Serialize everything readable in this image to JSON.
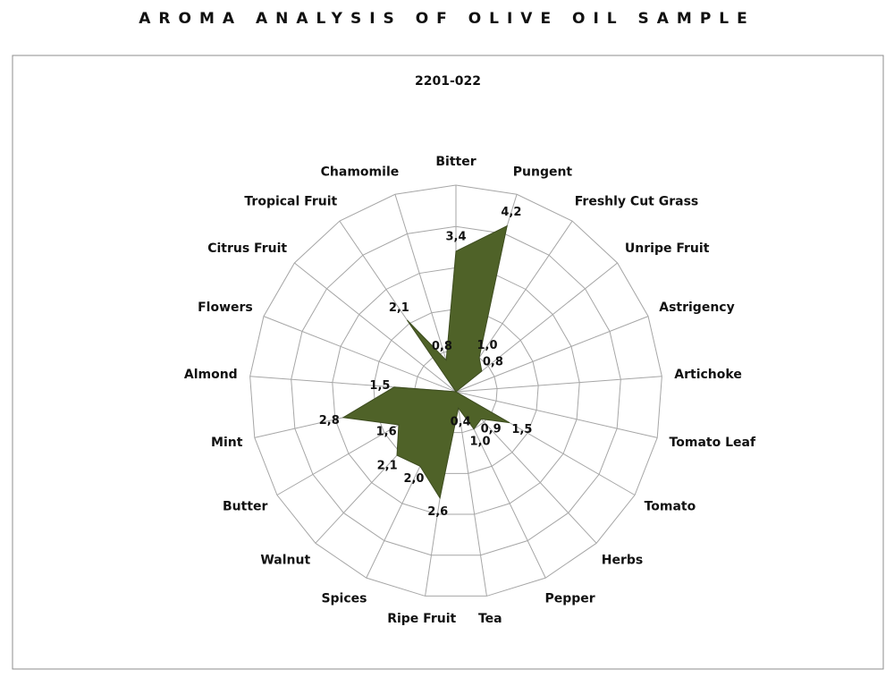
{
  "chart_data": {
    "type": "radar",
    "title": "AROMA ANALYSIS OF OLIVE OIL SAMPLE",
    "subtitle": "2201-022",
    "categories": [
      "Bitter",
      "Pungent",
      "Freshly Cut Grass",
      "Unripe Fruit",
      "Astrigency",
      "Artichoke",
      "Tomato Leaf",
      "Tomato",
      "Herbs",
      "Pepper",
      "Tea",
      "Ripe Fruit",
      "Spices",
      "Walnut",
      "Butter",
      "Mint",
      "Almond",
      "Flowers",
      "Citrus Fruit",
      "Tropical Fruit",
      "Chamomile"
    ],
    "values": [
      3.4,
      4.2,
      1.0,
      0.8,
      0,
      0,
      0,
      1.5,
      0.9,
      1.0,
      0.4,
      2.6,
      2.0,
      2.1,
      1.6,
      2.8,
      1.5,
      0,
      0,
      2.1,
      0.8
    ],
    "value_labels": [
      "3,4",
      "4,2",
      "1,0",
      "0,8",
      null,
      null,
      null,
      "1,5",
      "0,9",
      "1,0",
      "0,4",
      "2,6",
      "2,0",
      "2,1",
      "1,6",
      "2,8",
      "1,5",
      null,
      null,
      "2,1",
      "0,8"
    ],
    "color": "#4f6228",
    "rlim": [
      0,
      5
    ],
    "rticks": [
      0,
      1,
      2,
      3,
      4,
      5
    ]
  }
}
